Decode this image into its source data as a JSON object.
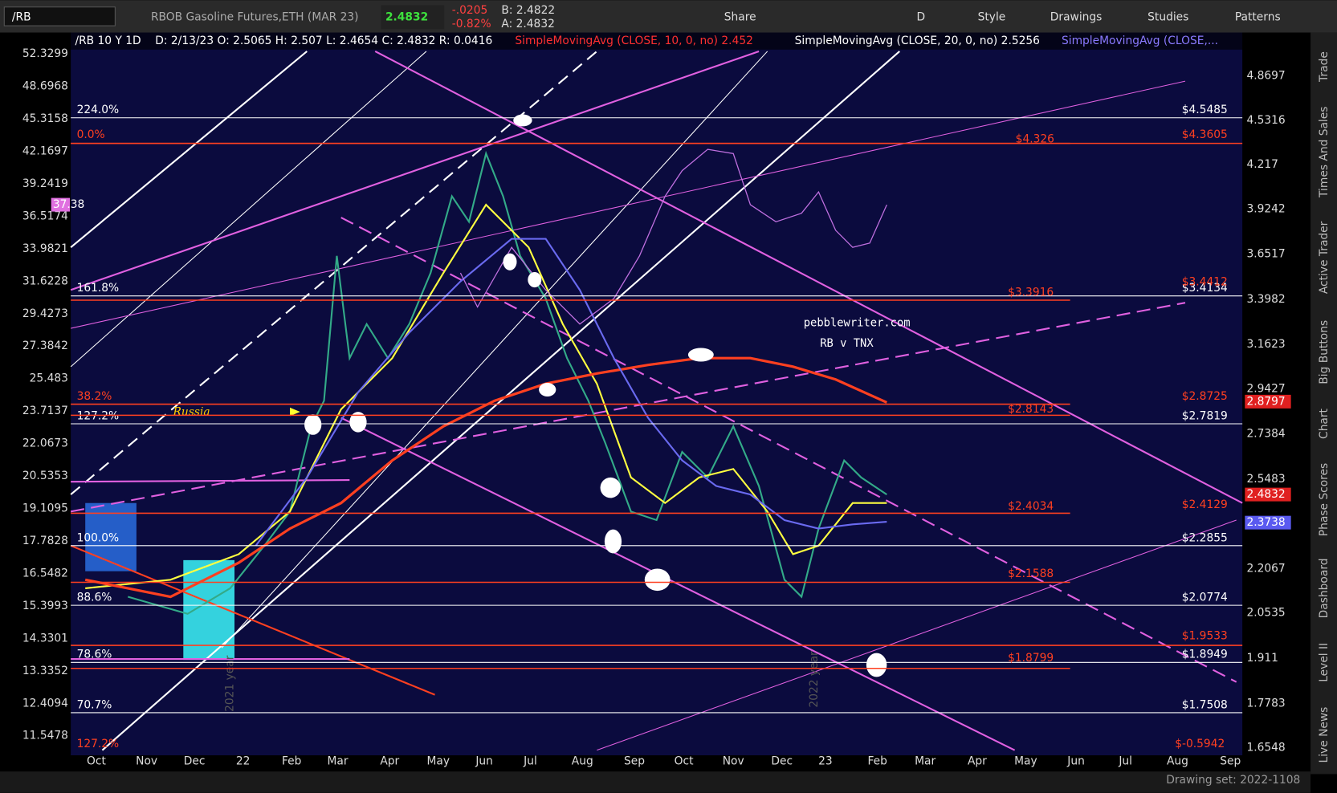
{
  "toolbar": {
    "symbol": "/RB",
    "description": "RBOB Gasoline Futures,ETH (MAR 23)",
    "last": "2.4832",
    "change": "-.0205",
    "change_pct": "-0.82%",
    "bid": "B: 2.4822",
    "ask": "A: 2.4832",
    "buttons": [
      "Share",
      "D",
      "Style",
      "Drawings",
      "Studies",
      "Patterns"
    ]
  },
  "header": {
    "info": "/RB 10 Y 1D",
    "ohlc": "D: 2/13/23  O: 2.5065  H: 2.507  L: 2.4654  C: 2.4832  R: 0.0416",
    "sma10": "SimpleMovingAvg (CLOSE, 10, 0, no)  2.452",
    "sma20": "SimpleMovingAvg (CLOSE, 20, 0, no)  2.5256",
    "sma_more": "SimpleMovingAvg (CLOSE,..."
  },
  "left_axis": [
    "52.3299",
    "48.6968",
    "45.3158",
    "42.1697",
    "39.2419",
    "36.5174",
    "33.9821",
    "31.6228",
    "29.4273",
    "27.3842",
    "25.483",
    "23.7137",
    "22.0673",
    "20.5353",
    "19.1095",
    "17.7828",
    "16.5482",
    "15.3993",
    "14.3301",
    "13.3352",
    "12.4094",
    "11.5478"
  ],
  "right_axis": [
    "4.8697",
    "4.5316",
    "4.217",
    "3.9242",
    "3.6517",
    "3.3982",
    "3.1623",
    "2.9427",
    "2.7384",
    "2.5483",
    "2.2067",
    "2.0535",
    "1.911",
    "1.7783",
    "1.6548"
  ],
  "price_tags": {
    "tnx": "37.38",
    "sma200": "2.8797",
    "last": "2.4832",
    "sma50": "2.3738"
  },
  "x_axis": [
    "Oct",
    "Nov",
    "Dec",
    "22",
    "Feb",
    "Mar",
    "Apr",
    "May",
    "Jun",
    "Jul",
    "Aug",
    "Sep",
    "Oct",
    "Nov",
    "Dec",
    "23",
    "Feb",
    "Mar",
    "Apr",
    "May",
    "Jun",
    "Jul",
    "Aug",
    "Sep"
  ],
  "white_levels": [
    {
      "left": "224.0%",
      "right": "$4.5485"
    },
    {
      "left": "161.8%",
      "right": "$3.4134"
    },
    {
      "left": "127.2%",
      "right": "$2.7819"
    },
    {
      "left": "100.0%",
      "right": "$2.2855"
    },
    {
      "left": "88.6%",
      "right": "$2.0774"
    },
    {
      "left": "78.6%",
      "right": "$1.8949"
    },
    {
      "left": "70.7%",
      "right": "$1.7508"
    }
  ],
  "red_labels": [
    "0.0%",
    "38.2%",
    "127.2%",
    "$4.3605",
    "$4.326",
    "$3.4412",
    "$3.3916",
    "$2.8725",
    "$2.8143",
    "$2.4129",
    "$2.4034",
    "$2.1588",
    "$1.9533",
    "$1.8799",
    "$-0.5942"
  ],
  "annotations": {
    "site": "pebblewriter.com",
    "subtitle": "RB v TNX",
    "russia": "Russia",
    "year1": "2021 year",
    "year2": "2022 year"
  },
  "sidebar": [
    "Trade",
    "Times And Sales",
    "Active Trader",
    "Big Buttons",
    "Chart",
    "Phase Scores",
    "Dashboard",
    "Level II",
    "Live News"
  ],
  "footer": {
    "drawing_set": "Drawing set: 2022-1108"
  }
}
